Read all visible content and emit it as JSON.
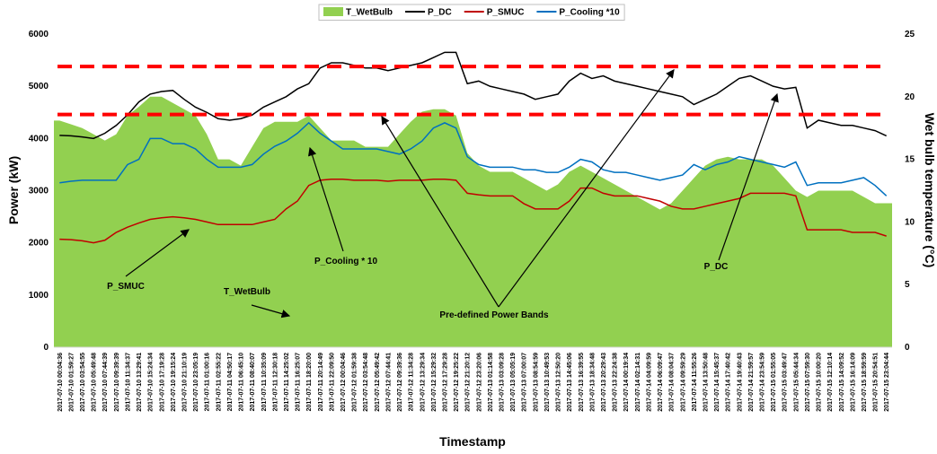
{
  "chart_data": {
    "type": "line",
    "x_label": "Timestamp",
    "y_label": "Power (kW)",
    "y2_label": "Wet bulb temperature (°C)",
    "ylim": [
      0,
      6000
    ],
    "yticks": [
      0,
      1000,
      2000,
      3000,
      4000,
      5000,
      6000
    ],
    "y2lim": [
      0,
      25
    ],
    "y2ticks": [
      0,
      5,
      10,
      15,
      20,
      25
    ],
    "grid": false,
    "legend": "top",
    "categories": [
      "2017-07-10 00:04:36",
      "2017-07-10 01:59:27",
      "2017-07-10 03:54:55",
      "2017-07-10 05:49:48",
      "2017-07-10 07:44:39",
      "2017-07-10 09:39:39",
      "2017-07-10 11:34:37",
      "2017-07-10 13:29:41",
      "2017-07-10 15:24:34",
      "2017-07-10 17:19:28",
      "2017-07-10 19:15:24",
      "2017-07-10 21:10:19",
      "2017-07-10 23:05:19",
      "2017-07-11 01:00:16",
      "2017-07-11 02:55:22",
      "2017-07-11 04:50:17",
      "2017-07-11 06:45:10",
      "2017-07-11 08:40:07",
      "2017-07-11 10:35:09",
      "2017-07-11 12:30:18",
      "2017-07-11 14:25:02",
      "2017-07-11 16:25:07",
      "2017-07-11 18:20:00",
      "2017-07-11 20:14:49",
      "2017-07-11 22:09:50",
      "2017-07-12 00:04:46",
      "2017-07-12 01:59:38",
      "2017-07-12 03:54:48",
      "2017-07-12 05:49:42",
      "2017-07-12 07:44:41",
      "2017-07-12 09:39:36",
      "2017-07-12 11:34:28",
      "2017-07-12 13:29:34",
      "2017-07-12 15:29:32",
      "2017-07-12 17:29:28",
      "2017-07-12 19:25:22",
      "2017-07-12 21:20:12",
      "2017-07-12 23:20:06",
      "2017-07-13 01:14:58",
      "2017-07-13 03:09:28",
      "2017-07-13 05:05:19",
      "2017-07-13 07:00:07",
      "2017-07-13 08:54:59",
      "2017-07-13 10:49:53",
      "2017-07-13 12:50:20",
      "2017-07-13 14:45:06",
      "2017-07-13 16:39:55",
      "2017-07-13 18:34:48",
      "2017-07-13 20:29:43",
      "2017-07-13 22:24:38",
      "2017-07-14 00:19:34",
      "2017-07-14 02:14:31",
      "2017-07-14 04:09:59",
      "2017-07-14 06:09:47",
      "2017-07-14 08:04:37",
      "2017-07-14 09:59:29",
      "2017-07-14 11:55:26",
      "2017-07-14 13:50:48",
      "2017-07-14 15:45:37",
      "2017-07-14 17:40:42",
      "2017-07-14 19:40:43",
      "2017-07-14 21:59:57",
      "2017-07-14 23:54:59",
      "2017-07-15 01:55:05",
      "2017-07-15 03:49:47",
      "2017-07-15 05:44:34",
      "2017-07-15 07:59:30",
      "2017-07-15 10:00:20",
      "2017-07-15 12:10:14",
      "2017-07-15 14:09:52",
      "2017-07-15 16:14:09",
      "2017-07-15 18:59:59",
      "2017-07-15 20:54:51",
      "2017-07-15 23:04:44"
    ],
    "series": [
      {
        "name": "T_WetBulb",
        "color": "#92d050",
        "style": "area",
        "axis": "y2",
        "values": [
          18.1,
          17.8,
          17.5,
          17,
          16.5,
          17,
          18.5,
          19.2,
          20,
          20,
          19.5,
          19,
          18.5,
          17,
          15,
          15,
          14.5,
          16,
          17.5,
          18,
          18,
          18,
          18.5,
          17.5,
          16.5,
          16.5,
          16.5,
          16,
          16,
          16,
          17,
          18,
          18.8,
          19,
          19,
          18.5,
          15.5,
          14.5,
          14,
          14,
          14,
          13.5,
          13,
          12.5,
          13,
          14,
          14.5,
          14,
          13.5,
          13,
          12.5,
          12,
          11.5,
          11,
          11.5,
          12.5,
          13.5,
          14.5,
          15,
          15.2,
          15,
          15,
          15,
          14.5,
          13.5,
          12.5,
          12,
          12.5,
          12.5,
          12.5,
          12.5,
          12,
          11.5,
          11.5
        ]
      },
      {
        "name": "P_DC",
        "color": "#000000",
        "style": "line",
        "values": [
          4060,
          4050,
          4030,
          4000,
          4100,
          4250,
          4450,
          4700,
          4850,
          4900,
          4920,
          4750,
          4600,
          4500,
          4380,
          4350,
          4380,
          4450,
          4600,
          4700,
          4800,
          4950,
          5050,
          5350,
          5450,
          5450,
          5400,
          5350,
          5350,
          5300,
          5350,
          5400,
          5450,
          5550,
          5650,
          5650,
          5050,
          5100,
          5000,
          4950,
          4900,
          4850,
          4750,
          4800,
          4850,
          5100,
          5250,
          5150,
          5200,
          5100,
          5050,
          5000,
          4950,
          4900,
          4850,
          4800,
          4650,
          4750,
          4850,
          5000,
          5150,
          5200,
          5100,
          5000,
          4950,
          4980,
          4200,
          4350,
          4300,
          4250,
          4250,
          4200,
          4150,
          4050
        ]
      },
      {
        "name": "P_SMUC",
        "color": "#c00000",
        "style": "line",
        "values": [
          2070,
          2060,
          2040,
          2000,
          2050,
          2200,
          2300,
          2380,
          2450,
          2480,
          2500,
          2480,
          2450,
          2400,
          2350,
          2350,
          2350,
          2350,
          2400,
          2450,
          2650,
          2800,
          3100,
          3200,
          3220,
          3220,
          3200,
          3200,
          3200,
          3180,
          3200,
          3200,
          3200,
          3220,
          3220,
          3200,
          2950,
          2920,
          2900,
          2900,
          2900,
          2750,
          2650,
          2650,
          2650,
          2800,
          3050,
          3050,
          2950,
          2900,
          2900,
          2900,
          2850,
          2800,
          2700,
          2650,
          2650,
          2700,
          2750,
          2800,
          2850,
          2950,
          2950,
          2950,
          2950,
          2900,
          2250,
          2250,
          2250,
          2250,
          2200,
          2200,
          2200,
          2130
        ]
      },
      {
        "name": "P_Cooling *10",
        "color": "#0070c0",
        "style": "line",
        "values": [
          3150,
          3180,
          3200,
          3200,
          3200,
          3200,
          3500,
          3600,
          4000,
          4000,
          3900,
          3900,
          3800,
          3600,
          3450,
          3450,
          3450,
          3500,
          3700,
          3850,
          3950,
          4100,
          4300,
          4100,
          3950,
          3800,
          3800,
          3800,
          3800,
          3750,
          3700,
          3800,
          3950,
          4200,
          4300,
          4200,
          3650,
          3500,
          3450,
          3450,
          3450,
          3400,
          3400,
          3350,
          3350,
          3450,
          3600,
          3550,
          3400,
          3350,
          3350,
          3300,
          3250,
          3200,
          3250,
          3300,
          3500,
          3400,
          3500,
          3550,
          3650,
          3600,
          3550,
          3500,
          3450,
          3550,
          3100,
          3150,
          3150,
          3150,
          3200,
          3250,
          3100,
          2900
        ]
      }
    ],
    "hlines": {
      "color": "#ff0000",
      "values": [
        5380,
        4460
      ]
    },
    "annotations": [
      "P_SMUC",
      "T_WetBulb",
      "P_Cooling * 10",
      "Pre-defined Power Bands",
      "P_DC"
    ]
  }
}
